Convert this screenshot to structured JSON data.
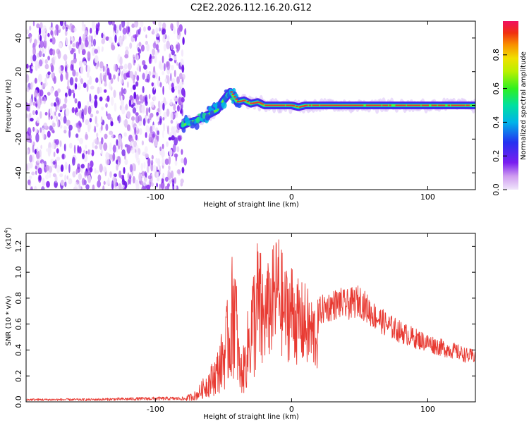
{
  "title": "C2E2.2026.112.16.20.G12",
  "colors": {
    "snr_line": "#e83a32",
    "background": "#ffffff",
    "ridge": "#e8392f"
  },
  "chart_data": [
    {
      "type": "heatmap",
      "name": "spectrogram",
      "xlabel": "Height of straight line (km)",
      "ylabel": "Frequency (Hz)",
      "xlim": [
        -195,
        135
      ],
      "ylim": [
        -50,
        50
      ],
      "xticks": [
        -100,
        0,
        100
      ],
      "yticks": [
        -40,
        -20,
        0,
        20,
        40
      ],
      "noise_region_x": [
        -195,
        -80
      ],
      "ridge": {
        "x": [
          -80,
          -75,
          -70,
          -65,
          -60,
          -55,
          -50,
          -45,
          -40,
          -35,
          -30,
          -25,
          -20,
          -15,
          -10,
          -5,
          0,
          5,
          10,
          50,
          100,
          135
        ],
        "frequency": [
          -12,
          -10,
          -9,
          -7,
          -5,
          -3,
          3,
          8,
          2,
          3,
          1,
          2,
          0,
          0,
          0,
          0,
          0,
          -1,
          0,
          0,
          0,
          0
        ]
      },
      "colorbar": {
        "label": "Normalized spectral amplitude",
        "range": [
          0.0,
          1.0
        ],
        "ticks": [
          "0.0",
          "0.2",
          "0.4",
          "0.6",
          "0.8"
        ],
        "tick_values": [
          0.0,
          0.2,
          0.4,
          0.6,
          0.8
        ]
      }
    },
    {
      "type": "line",
      "name": "snr",
      "xlabel": "Height of straight line (km)",
      "ylabel": "SNR (10 * v/v)",
      "exponent_label": "(x10",
      "exponent_power": "4",
      "exponent_close": ")",
      "xlim": [
        -195,
        135
      ],
      "ylim": [
        0.0,
        1.3
      ],
      "xticks": [
        -100,
        0,
        100
      ],
      "yticks": [
        "0.0",
        "0.2",
        "0.4",
        "0.6",
        "0.8",
        "1.0",
        "1.2"
      ],
      "ytick_values": [
        0.0,
        0.2,
        0.4,
        0.6,
        0.8,
        1.0,
        1.2
      ],
      "envelope": {
        "x": [
          -195,
          -150,
          -100,
          -80,
          -70,
          -60,
          -55,
          -50,
          -45,
          -42,
          -40,
          -38,
          -35,
          -30,
          -25,
          -20,
          -15,
          -10,
          -5,
          0,
          5,
          10,
          15,
          20,
          25,
          30,
          35,
          40,
          45,
          50,
          55,
          60,
          70,
          80,
          90,
          100,
          110,
          120,
          130,
          135
        ],
        "y": [
          0.02,
          0.02,
          0.03,
          0.03,
          0.08,
          0.25,
          0.35,
          0.55,
          0.85,
          1.28,
          0.75,
          0.35,
          0.4,
          0.85,
          1.18,
          0.95,
          1.1,
          1.28,
          1.0,
          1.05,
          0.9,
          0.88,
          0.78,
          0.75,
          0.78,
          0.8,
          0.82,
          0.8,
          0.82,
          0.84,
          0.78,
          0.72,
          0.64,
          0.58,
          0.53,
          0.49,
          0.45,
          0.42,
          0.38,
          0.38
        ]
      }
    }
  ]
}
